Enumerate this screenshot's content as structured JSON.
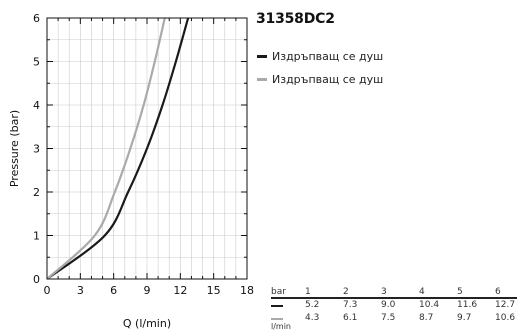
{
  "chart_data": {
    "type": "line",
    "title": "31358DC2",
    "xlabel": "Q (l/min)",
    "ylabel": "Pressure (bar)",
    "xlim": [
      0,
      18
    ],
    "ylim": [
      0,
      6
    ],
    "xticks": [
      0,
      3,
      6,
      9,
      12,
      15,
      18
    ],
    "yticks": [
      0,
      1,
      2,
      3,
      4,
      5,
      6
    ],
    "grid": true,
    "legend_position": "top-right, outside plot",
    "series": [
      {
        "name": "Издръпващ се душ",
        "color": "#1a1a1a",
        "x": [
          0,
          5.2,
          7.3,
          9.0,
          10.4,
          11.6,
          12.7
        ],
        "y": [
          0,
          1,
          2,
          3,
          4,
          5,
          6
        ]
      },
      {
        "name": "Издръпващ се душ",
        "color": "#aaaaaa",
        "x": [
          0,
          4.3,
          6.1,
          7.5,
          8.7,
          9.7,
          10.6
        ],
        "y": [
          0,
          1,
          2,
          3,
          4,
          5,
          6
        ]
      }
    ]
  },
  "table": {
    "header_label": "bar",
    "unit_label": "l/min",
    "pressures": [
      "1",
      "2",
      "3",
      "4",
      "5",
      "6"
    ],
    "rows": [
      {
        "color": "#1a1a1a",
        "values": [
          "5.2",
          "7.3",
          "9.0",
          "10.4",
          "11.6",
          "12.7"
        ]
      },
      {
        "color": "#aaaaaa",
        "values": [
          "4.3",
          "6.1",
          "7.5",
          "8.7",
          "9.7",
          "10.6"
        ]
      }
    ]
  }
}
